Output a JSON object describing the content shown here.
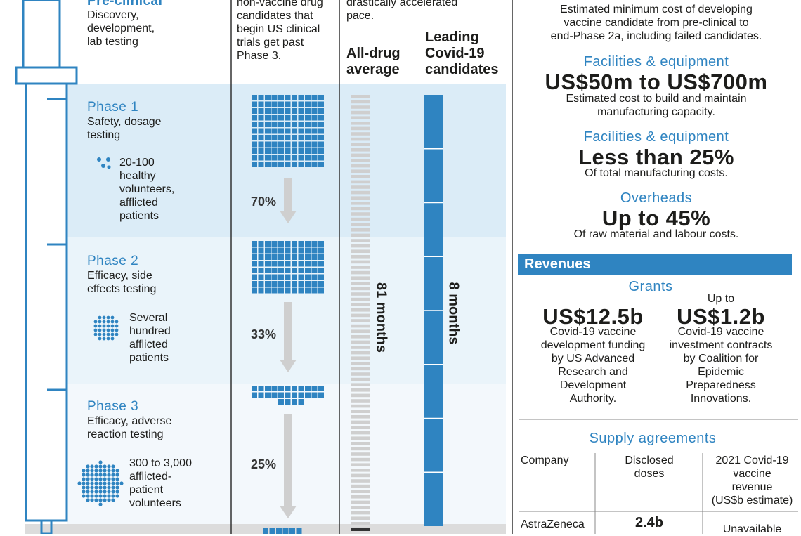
{
  "colors": {
    "accent": "#2f84c1",
    "band": "#dbecf7",
    "band_light": "#eaf4fa"
  },
  "stages": {
    "preclinical": {
      "title": "Pre-clinical",
      "sub": [
        "Discovery,",
        "development,",
        "lab testing"
      ]
    },
    "phase1": {
      "title": "Phase 1",
      "sub": [
        "Safety, dosage",
        "testing"
      ],
      "people": [
        "20-100",
        "healthy",
        "volunteers,",
        "afflicted",
        "patients"
      ],
      "pct": "70%"
    },
    "phase2": {
      "title": "Phase 2",
      "sub": [
        "Efficacy, side",
        "effects testing"
      ],
      "people": [
        "Several",
        "hundred",
        "afflicted",
        "patients"
      ],
      "pct": "33%"
    },
    "phase3": {
      "title": "Phase 3",
      "sub": [
        "Efficacy, adverse",
        "reaction testing"
      ],
      "people": [
        "300 to 3,000",
        "afflicted-",
        "patient",
        "volunteers"
      ],
      "pct": "25%"
    }
  },
  "col2_text": [
    "non-vaccine drug",
    "candidates that",
    "begin US clinical",
    "trials get past",
    "Phase 3."
  ],
  "col3_text": [
    "drastically accelerated",
    "pace."
  ],
  "timeline": {
    "all_drug_label": [
      "All-drug",
      "average"
    ],
    "covid_label": [
      "Leading",
      "Covid-19",
      "candidates"
    ],
    "all_drug_value": "81 months",
    "covid_value": "8 months"
  },
  "costs": {
    "intro": [
      "Estimated minimum cost of developing",
      "vaccine candidate from pre-clinical to",
      "end-Phase 2a, including failed candidates."
    ],
    "items": [
      {
        "heading": "Facilities & equipment",
        "value": "US$50m to US$700m",
        "desc": [
          "Estimated cost to build and maintain",
          "manufacturing capacity."
        ]
      },
      {
        "heading": "Facilities & equipment",
        "value": "Less than 25%",
        "desc": [
          "Of total manufacturing costs."
        ]
      },
      {
        "heading": "Overheads",
        "value": "Up to 45%",
        "desc": [
          "Of raw material and labour costs."
        ]
      }
    ]
  },
  "revenues": {
    "header": "Revenues",
    "grants_heading": "Grants",
    "grant1": {
      "value": "US$12.5b",
      "desc": [
        "Covid-19 vaccine",
        "development funding",
        "by US Advanced",
        "Research and",
        "Development",
        "Authority."
      ]
    },
    "grant2": {
      "pre": "Up to",
      "value": "US$1.2b",
      "desc": [
        "Covid-19 vaccine",
        "investment contracts",
        "by Coalition for",
        "Epidemic",
        "Preparedness",
        "Innovations."
      ]
    }
  },
  "supply": {
    "heading": "Supply agreements",
    "col_company": "Company",
    "col_doses": [
      "Disclosed",
      "doses"
    ],
    "col_revenue": [
      "2021 Covid-19",
      "vaccine",
      "revenue",
      "(US$b estimate)"
    ],
    "rows": [
      {
        "company": "AstraZeneca",
        "doses": "2.4b",
        "revenue": "Unavailable"
      }
    ]
  }
}
